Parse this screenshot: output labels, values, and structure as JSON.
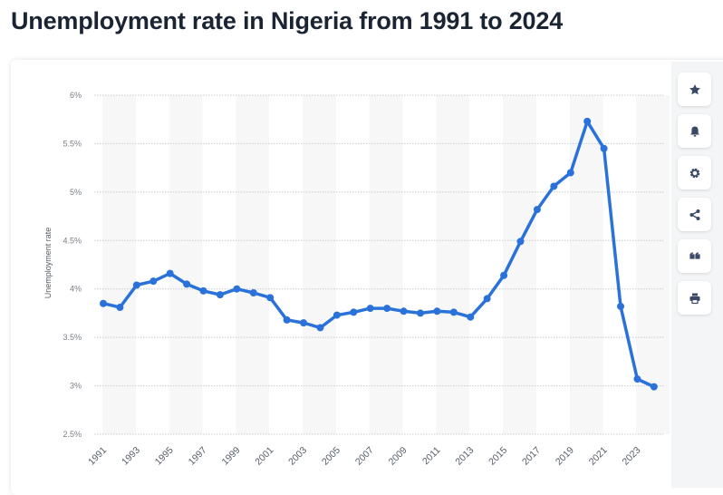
{
  "title": "Unemployment rate in Nigeria from 1991 to 2024",
  "toolbar": [
    {
      "icon": "star-icon",
      "name": "favorite"
    },
    {
      "icon": "bell-icon",
      "name": "notification"
    },
    {
      "icon": "gear-icon",
      "name": "settings"
    },
    {
      "icon": "share-icon",
      "name": "share"
    },
    {
      "icon": "quote-icon",
      "name": "cite"
    },
    {
      "icon": "printer-icon",
      "name": "print"
    }
  ],
  "chart_data": {
    "type": "line",
    "title": "Unemployment rate in Nigeria from 1991 to 2024",
    "xlabel": "",
    "ylabel": "Unemployment rate",
    "ylim": [
      2.5,
      6
    ],
    "yticks": [
      "2.5%",
      "3%",
      "3.5%",
      "4%",
      "4.5%",
      "5%",
      "5.5%",
      "6%"
    ],
    "xtick_labels": [
      "1991",
      "1993",
      "1995",
      "1997",
      "1999",
      "2001",
      "2003",
      "2005",
      "2007",
      "2009",
      "2011",
      "2013",
      "2015",
      "2017",
      "2019",
      "2021",
      "2023"
    ],
    "grid": true,
    "line_color": "#2a72d9",
    "x": [
      1991,
      1992,
      1993,
      1994,
      1995,
      1996,
      1997,
      1998,
      1999,
      2000,
      2001,
      2002,
      2003,
      2004,
      2005,
      2006,
      2007,
      2008,
      2009,
      2010,
      2011,
      2012,
      2013,
      2014,
      2015,
      2016,
      2017,
      2018,
      2019,
      2020,
      2021,
      2022,
      2023,
      2024
    ],
    "values": [
      3.85,
      3.81,
      4.04,
      4.08,
      4.16,
      4.05,
      3.98,
      3.94,
      4.0,
      3.96,
      3.91,
      3.68,
      3.65,
      3.6,
      3.73,
      3.76,
      3.8,
      3.8,
      3.77,
      3.75,
      3.77,
      3.76,
      3.71,
      3.9,
      4.14,
      4.49,
      4.82,
      5.06,
      5.2,
      5.73,
      5.45,
      3.82,
      3.07,
      2.99
    ]
  }
}
